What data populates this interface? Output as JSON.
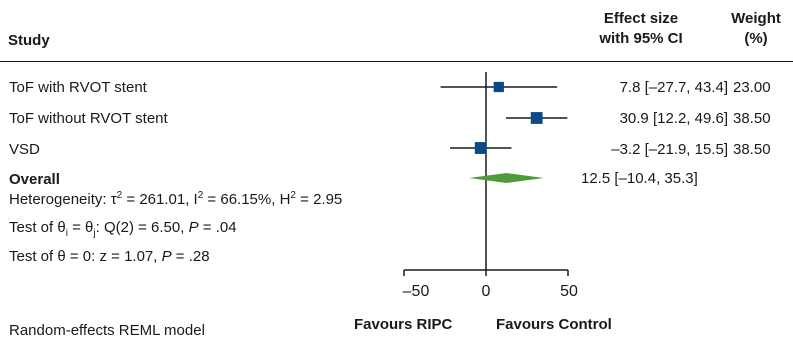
{
  "header": {
    "study": "Study",
    "effect_line1": "Effect size",
    "effect_line2": "with 95% CI",
    "weight_line1": "Weight",
    "weight_line2": "(%)"
  },
  "stats": {
    "heterogeneity_prefix": "Heterogeneity: τ",
    "tau_sq": "2",
    "tau_val": " = 261.01, I",
    "i_sq": "2",
    "i_val": " = 66.15%, H",
    "h_sq": "2",
    "h_val": " = 2.95",
    "test1_a": "Test of θ",
    "test1_sub_i": "i",
    "test1_b": " = θ",
    "test1_sub_j": "j",
    "test1_c": ": Q(2) = 6.50, ",
    "test1_p": "P",
    "test1_d": " = .04",
    "test2_a": "Test of θ = 0: z = 1.07, ",
    "test2_p": "P",
    "test2_b": " = .28"
  },
  "footer": {
    "model": "Random-effects REML model",
    "favours_left": "Favours RIPC",
    "favours_right": "Favours Control"
  },
  "colors": {
    "marker": "#0b4a8a",
    "diamond": "#4f9a3b",
    "line": "#1a1a1a"
  },
  "chart_data": {
    "type": "forest",
    "studies": [
      {
        "name": "ToF with RVOT stent",
        "estimate": 7.8,
        "ci_low": -27.7,
        "ci_high": 43.4,
        "weight": 23.0,
        "es_text": "7.8 [–27.7, 43.4]",
        "weight_text": "23.00"
      },
      {
        "name": "ToF without RVOT stent",
        "estimate": 30.9,
        "ci_low": 12.2,
        "ci_high": 49.6,
        "weight": 38.5,
        "es_text": "30.9 [12.2, 49.6]",
        "weight_text": "38.50"
      },
      {
        "name": "VSD",
        "estimate": -3.2,
        "ci_low": -21.9,
        "ci_high": 15.5,
        "weight": 38.5,
        "es_text": "–3.2 [–21.9, 15.5]",
        "weight_text": "38.50"
      }
    ],
    "overall": {
      "name": "Overall",
      "estimate": 12.5,
      "ci_low": -10.4,
      "ci_high": 35.3,
      "es_text": "12.5 [–10.4, 35.3]"
    },
    "x_ticks": [
      -50,
      0,
      50
    ],
    "x_tick_labels": [
      "–50",
      "0",
      "50"
    ],
    "xlim": [
      -50,
      50
    ],
    "null_line": 0
  }
}
